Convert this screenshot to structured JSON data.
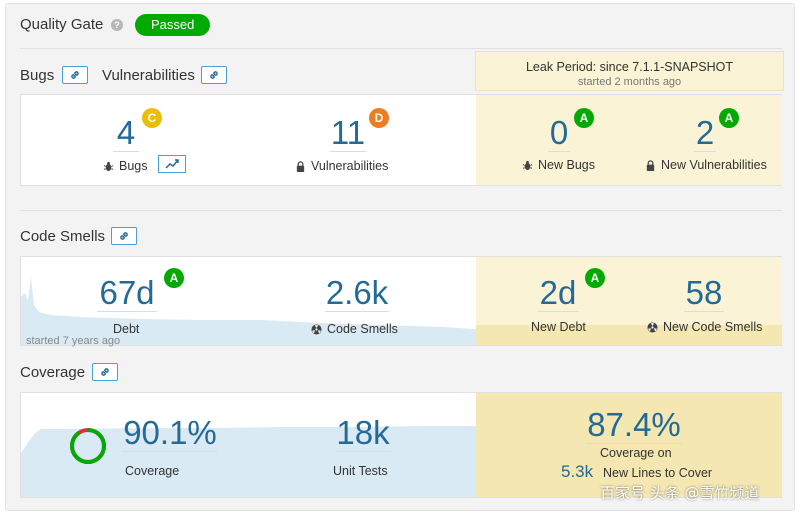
{
  "colors": {
    "passed_green": "#00aa00",
    "rating_a": "#00aa00",
    "rating_c": "#eabe06",
    "rating_d": "#ed7d20",
    "metric_blue": "#236a97",
    "leak_bg": "#fbf3d5",
    "chart_fill": "#cde6f5"
  },
  "quality_gate": {
    "title": "Quality Gate",
    "status": "Passed",
    "help_icon": "?"
  },
  "leak_period": {
    "title": "Leak Period: since 7.1.1-SNAPSHOT",
    "subtitle": "started 2 months ago"
  },
  "reliability_section": {
    "bugs_title": "Bugs",
    "vulnerabilities_title": "Vulnerabilities",
    "bugs": {
      "value": "4",
      "rating": "C",
      "label": "Bugs"
    },
    "vulnerabilities": {
      "value": "11",
      "rating": "D",
      "label": "Vulnerabilities"
    },
    "new_bugs": {
      "value": "0",
      "rating": "A",
      "label": "New Bugs"
    },
    "new_vulnerabilities": {
      "value": "2",
      "rating": "A",
      "label": "New Vulnerabilities"
    }
  },
  "code_smells_section": {
    "title": "Code Smells",
    "debt": {
      "value": "67d",
      "rating": "A",
      "label": "Debt",
      "started": "started 7 years ago"
    },
    "code_smells": {
      "value": "2.6k",
      "label": "Code Smells"
    },
    "new_debt": {
      "value": "2d",
      "rating": "A",
      "label": "New Debt"
    },
    "new_code_smells": {
      "value": "58",
      "label": "New Code Smells"
    }
  },
  "coverage_section": {
    "title": "Coverage",
    "coverage": {
      "value": "90.1%",
      "label": "Coverage",
      "fraction": 0.901
    },
    "unit_tests": {
      "value": "18k",
      "label": "Unit Tests"
    },
    "new_coverage": {
      "value": "87.4%",
      "label_line1": "Coverage on",
      "lines_value": "5.3k",
      "lines_label": "New Lines to Cover"
    }
  },
  "watermark": {
    "text": "百家号 头条 @雪竹频道"
  }
}
